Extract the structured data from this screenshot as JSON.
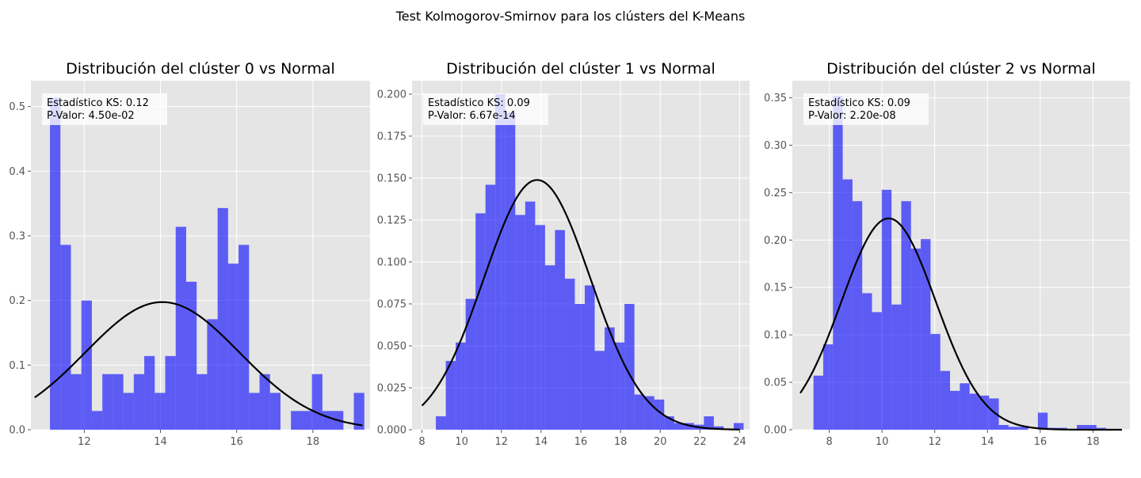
{
  "figure": {
    "suptitle": "Test Kolmogorov-Smirnov para los clústers del K-Means"
  },
  "colors": {
    "bar": "#0000ff",
    "curve": "#000000",
    "panel_bg": "#e5e5e5",
    "grid": "#ffffff",
    "tick": "#555555"
  },
  "chart_data": [
    {
      "type": "bar",
      "title": "Distribución del clúster 0 vs Normal",
      "annotation": {
        "ks_line": "Estadístico KS: 0.12",
        "p_line": "P-Valor: 4.50e-02"
      },
      "xlim": [
        10.6,
        19.5
      ],
      "ylim": [
        0,
        0.54
      ],
      "xticks": [
        12,
        14,
        16,
        18
      ],
      "yticks": [
        0.0,
        0.1,
        0.2,
        0.3,
        0.4,
        0.5
      ],
      "ytick_labels": [
        "0.0",
        "0.1",
        "0.2",
        "0.3",
        "0.4",
        "0.5"
      ],
      "bins": {
        "start": 11.1,
        "width": 0.275
      },
      "values": [
        0.514,
        0.286,
        0.086,
        0.2,
        0.029,
        0.086,
        0.086,
        0.057,
        0.086,
        0.114,
        0.057,
        0.114,
        0.314,
        0.229,
        0.086,
        0.171,
        0.343,
        0.257,
        0.286,
        0.057,
        0.086,
        0.057,
        0.0,
        0.029,
        0.029,
        0.086,
        0.029,
        0.029,
        0.0,
        0.057
      ],
      "normal": {
        "mean": 14.05,
        "std": 2.02,
        "xmin": 10.7,
        "xmax": 19.3
      }
    },
    {
      "type": "bar",
      "title": "Distribución del clúster 1 vs Normal",
      "annotation": {
        "ks_line": "Estadístico KS: 0.09",
        "p_line": "P-Valor: 6.67e-14"
      },
      "xlim": [
        7.5,
        24.5
      ],
      "ylim": [
        0,
        0.208
      ],
      "xticks": [
        8,
        10,
        12,
        14,
        16,
        18,
        20,
        22,
        24
      ],
      "yticks": [
        0.0,
        0.025,
        0.05,
        0.075,
        0.1,
        0.125,
        0.15,
        0.175,
        0.2
      ],
      "ytick_labels": [
        "0.000",
        "0.025",
        "0.050",
        "0.075",
        "0.100",
        "0.125",
        "0.150",
        "0.175",
        "0.200"
      ],
      "bins": {
        "start": 8.7,
        "width": 0.5
      },
      "values": [
        0.008,
        0.041,
        0.052,
        0.078,
        0.129,
        0.146,
        0.2,
        0.189,
        0.128,
        0.136,
        0.122,
        0.098,
        0.119,
        0.09,
        0.075,
        0.086,
        0.047,
        0.061,
        0.052,
        0.075,
        0.021,
        0.02,
        0.018,
        0.008,
        0.004,
        0.004,
        0.003,
        0.008,
        0.002,
        0.0,
        0.004
      ],
      "normal": {
        "mean": 13.8,
        "std": 2.68,
        "xmin": 8.0,
        "xmax": 24.0
      }
    },
    {
      "type": "bar",
      "title": "Distribución del clúster 2 vs Normal",
      "annotation": {
        "ks_line": "Estadístico KS: 0.09",
        "p_line": "P-Valor: 2.20e-08"
      },
      "xlim": [
        6.6,
        19.4
      ],
      "ylim": [
        0,
        0.368
      ],
      "xticks": [
        8,
        10,
        12,
        14,
        16,
        18
      ],
      "yticks": [
        0.0,
        0.05,
        0.1,
        0.15,
        0.2,
        0.25,
        0.3,
        0.35
      ],
      "ytick_labels": [
        "0.00",
        "0.05",
        "0.10",
        "0.15",
        "0.20",
        "0.25",
        "0.30",
        "0.35"
      ],
      "bins": {
        "start": 7.4,
        "width": 0.37
      },
      "values": [
        0.057,
        0.09,
        0.352,
        0.264,
        0.241,
        0.144,
        0.124,
        0.253,
        0.132,
        0.241,
        0.191,
        0.201,
        0.101,
        0.062,
        0.041,
        0.049,
        0.038,
        0.036,
        0.033,
        0.005,
        0.003,
        0.003,
        0.0,
        0.018,
        0.002,
        0.002,
        0.0,
        0.005,
        0.005,
        0.002
      ],
      "normal": {
        "mean": 10.25,
        "std": 1.79,
        "xmin": 6.9,
        "xmax": 19.1
      }
    }
  ]
}
